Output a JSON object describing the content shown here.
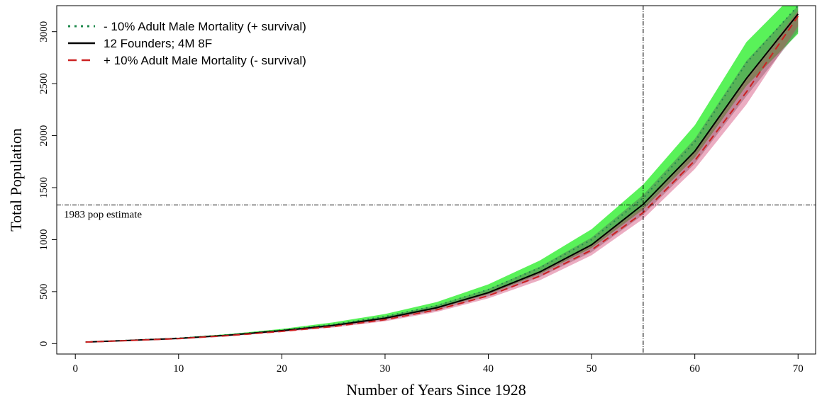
{
  "chart_data": {
    "type": "line",
    "x_label": "Number of Years Since 1928",
    "y_label": "Total Population",
    "xlim": [
      -1.8,
      71.7
    ],
    "ylim": [
      -100,
      3250
    ],
    "xticks": [
      0,
      10,
      20,
      30,
      40,
      50,
      60,
      70
    ],
    "yticks": [
      0,
      500,
      1000,
      1500,
      2000,
      2500,
      3000
    ],
    "x": [
      1,
      5,
      10,
      15,
      20,
      25,
      30,
      35,
      40,
      45,
      50,
      55,
      60,
      65,
      70
    ],
    "series": [
      {
        "name": "- 10% Adult Male Mortality (+ survival)",
        "color": "#1f8a4c",
        "dash": "dotted",
        "band_color": "#22ee22",
        "values": [
          15,
          31,
          52,
          86,
          130,
          185,
          260,
          365,
          520,
          730,
          1000,
          1400,
          1940,
          2700,
          3250
        ],
        "band_lower": [
          14,
          29,
          48,
          79,
          120,
          168,
          238,
          335,
          475,
          670,
          920,
          1290,
          1790,
          2480,
          2980
        ],
        "band_upper": [
          16,
          33,
          56,
          93,
          142,
          205,
          285,
          400,
          570,
          800,
          1100,
          1530,
          2100,
          2900,
          3400
        ]
      },
      {
        "name": "12 Founders; 4M 8F",
        "color": "#000000",
        "dash": "solid",
        "band_color": "#555555",
        "values": [
          15,
          30,
          50,
          82,
          125,
          175,
          245,
          345,
          490,
          690,
          950,
          1340,
          1850,
          2550,
          3170
        ],
        "band_lower": [
          14,
          28,
          47,
          77,
          117,
          163,
          228,
          320,
          455,
          640,
          880,
          1240,
          1730,
          2380,
          3000
        ],
        "band_upper": [
          16,
          32,
          53,
          87,
          133,
          188,
          263,
          370,
          525,
          740,
          1020,
          1430,
          1970,
          2720,
          3250
        ]
      },
      {
        "name": "+ 10% Adult Male Mortality (- survival)",
        "color": "#cc2222",
        "dash": "dashed",
        "band_color": "#cc3366",
        "values": [
          15,
          29,
          48,
          78,
          118,
          165,
          230,
          325,
          460,
          650,
          900,
          1260,
          1760,
          2420,
          3150
        ],
        "band_lower": [
          14,
          27,
          45,
          73,
          111,
          155,
          215,
          305,
          435,
          610,
          850,
          1200,
          1680,
          2300,
          3050
        ],
        "band_upper": [
          16,
          31,
          51,
          83,
          126,
          176,
          245,
          345,
          490,
          690,
          950,
          1320,
          1840,
          2550,
          3200
        ]
      }
    ],
    "hline": {
      "value": 1333,
      "label": "1983 pop estimate"
    },
    "vline": {
      "value": 55
    },
    "legend": "top-left"
  }
}
